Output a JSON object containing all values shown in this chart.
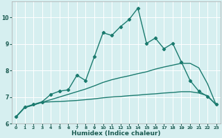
{
  "xlabel": "Humidex (Indice chaleur)",
  "background_color": "#d6eff0",
  "grid_color": "#ffffff",
  "line_color": "#1a7a6e",
  "xlim": [
    -0.5,
    23.5
  ],
  "ylim": [
    6,
    10.6
  ],
  "yticks": [
    6,
    7,
    8,
    9,
    10
  ],
  "xticks": [
    0,
    1,
    2,
    3,
    4,
    5,
    6,
    7,
    8,
    9,
    10,
    11,
    12,
    13,
    14,
    15,
    16,
    17,
    18,
    19,
    20,
    21,
    22,
    23
  ],
  "series": [
    {
      "x": [
        0,
        1,
        2,
        3,
        4,
        5,
        6,
        7,
        8,
        9,
        10,
        11,
        12,
        13,
        14,
        15,
        16,
        17,
        18,
        19,
        20,
        21,
        22,
        23
      ],
      "y": [
        6.25,
        6.6,
        6.7,
        6.8,
        6.82,
        6.83,
        6.85,
        6.87,
        6.9,
        6.93,
        6.97,
        7.0,
        7.02,
        7.05,
        7.07,
        7.1,
        7.12,
        7.15,
        7.17,
        7.2,
        7.2,
        7.15,
        7.05,
        6.7
      ],
      "marker": false,
      "linewidth": 1.0
    },
    {
      "x": [
        0,
        1,
        2,
        3,
        4,
        5,
        6,
        7,
        8,
        9,
        10,
        11,
        12,
        13,
        14,
        15,
        16,
        17,
        18,
        19,
        20,
        21,
        22,
        23
      ],
      "y": [
        6.25,
        6.6,
        6.7,
        6.8,
        6.9,
        7.0,
        7.1,
        7.2,
        7.3,
        7.42,
        7.55,
        7.65,
        7.73,
        7.8,
        7.88,
        7.95,
        8.05,
        8.13,
        8.2,
        8.27,
        8.27,
        8.1,
        7.5,
        6.7
      ],
      "marker": false,
      "linewidth": 1.0
    },
    {
      "x": [
        0,
        1,
        2,
        3,
        4,
        5,
        6,
        7,
        8,
        9,
        10,
        11,
        12,
        13,
        14,
        15,
        16,
        17,
        18,
        19,
        20,
        21,
        22,
        23
      ],
      "y": [
        6.25,
        6.62,
        6.72,
        6.82,
        7.1,
        7.22,
        7.27,
        7.82,
        7.62,
        8.52,
        9.42,
        9.32,
        9.65,
        9.92,
        10.35,
        9.02,
        9.22,
        8.82,
        9.02,
        8.32,
        7.62,
        7.22,
        7.02,
        6.72
      ],
      "marker": true,
      "linewidth": 1.0
    }
  ]
}
